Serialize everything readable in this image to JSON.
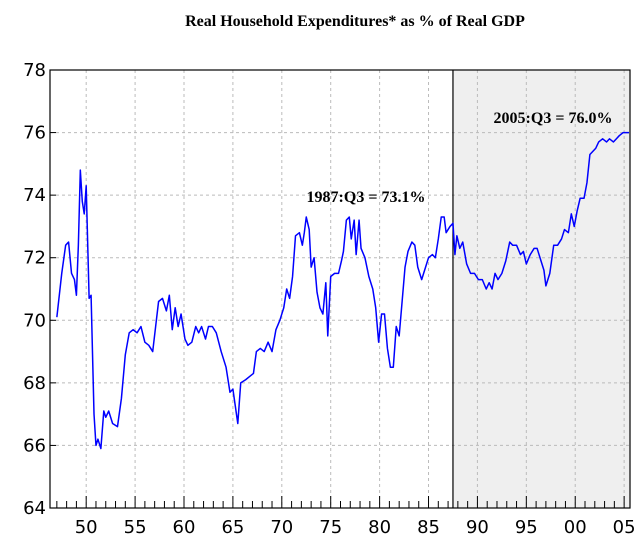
{
  "chart_data": {
    "type": "line",
    "title": "Real Household Expenditures* as % of Real GDP",
    "annotations": [
      "1987:Q3 = 73.1%",
      "2005:Q3 = 76.0%"
    ],
    "color": "#0000ff",
    "shade_from": 1987.5,
    "shade_color": "#efefef",
    "grid": true,
    "xlim": [
      1946.3,
      2005.6
    ],
    "ylim": [
      64,
      78
    ],
    "yticks": [
      64,
      66,
      68,
      70,
      72,
      74,
      76,
      78
    ],
    "xticks": [
      {
        "value": 1950,
        "label": "50"
      },
      {
        "value": 1955,
        "label": "55"
      },
      {
        "value": 1960,
        "label": "60"
      },
      {
        "value": 1965,
        "label": "65"
      },
      {
        "value": 1970,
        "label": "70"
      },
      {
        "value": 1975,
        "label": "75"
      },
      {
        "value": 1980,
        "label": "80"
      },
      {
        "value": 1985,
        "label": "85"
      },
      {
        "value": 1990,
        "label": "90"
      },
      {
        "value": 1995,
        "label": "95"
      },
      {
        "value": 2000,
        "label": "00"
      },
      {
        "value": 2005,
        "label": "05"
      }
    ],
    "xminorticks": [
      1947,
      1948,
      1949,
      1951,
      1952,
      1953,
      1954,
      1956,
      1957,
      1958,
      1959,
      1961,
      1962,
      1963,
      1964,
      1966,
      1967,
      1968,
      1969,
      1971,
      1972,
      1973,
      1974,
      1976,
      1977,
      1978,
      1979,
      1981,
      1982,
      1983,
      1984,
      1986,
      1987,
      1988,
      1989,
      1991,
      1992,
      1993,
      1994,
      1996,
      1997,
      1998,
      1999,
      2001,
      2002,
      2003,
      2004
    ],
    "x": [
      1947.0,
      1947.5,
      1947.9,
      1948.2,
      1948.5,
      1948.8,
      1949.0,
      1949.2,
      1949.4,
      1949.6,
      1949.8,
      1950.0,
      1950.3,
      1950.5,
      1950.8,
      1951.0,
      1951.2,
      1951.5,
      1951.8,
      1952.0,
      1952.3,
      1952.7,
      1953.2,
      1953.6,
      1954.0,
      1954.4,
      1954.8,
      1955.2,
      1955.6,
      1956.0,
      1956.4,
      1956.8,
      1957.1,
      1957.4,
      1957.8,
      1958.2,
      1958.5,
      1958.8,
      1959.1,
      1959.4,
      1959.7,
      1960.1,
      1960.4,
      1960.8,
      1961.2,
      1961.5,
      1961.8,
      1962.2,
      1962.5,
      1962.9,
      1963.3,
      1963.8,
      1964.3,
      1964.7,
      1965.0,
      1965.5,
      1965.8,
      1966.3,
      1966.7,
      1967.1,
      1967.4,
      1967.8,
      1968.2,
      1968.6,
      1969.0,
      1969.4,
      1969.8,
      1970.2,
      1970.5,
      1970.8,
      1971.1,
      1971.4,
      1971.8,
      1972.1,
      1972.3,
      1972.5,
      1972.8,
      1973.0,
      1973.3,
      1973.6,
      1973.9,
      1974.2,
      1974.5,
      1974.7,
      1975.0,
      1975.4,
      1975.8,
      1976.1,
      1976.3,
      1976.6,
      1976.9,
      1977.1,
      1977.4,
      1977.6,
      1977.9,
      1978.1,
      1978.5,
      1978.9,
      1979.3,
      1979.6,
      1979.9,
      1980.2,
      1980.5,
      1980.8,
      1981.1,
      1981.4,
      1981.7,
      1982.0,
      1982.3,
      1982.6,
      1982.9,
      1983.3,
      1983.6,
      1983.9,
      1984.3,
      1984.7,
      1985.0,
      1985.4,
      1985.7,
      1986.0,
      1986.3,
      1986.6,
      1986.8,
      1987.2,
      1987.5,
      1987.7,
      1987.9,
      1988.2,
      1988.5,
      1988.9,
      1989.3,
      1989.7,
      1990.1,
      1990.5,
      1990.9,
      1991.2,
      1991.5,
      1991.8,
      1992.1,
      1992.5,
      1992.9,
      1993.3,
      1993.6,
      1994.0,
      1994.4,
      1994.7,
      1995.0,
      1995.4,
      1995.8,
      1996.1,
      1996.5,
      1996.8,
      1997.0,
      1997.4,
      1997.8,
      1998.2,
      1998.6,
      1998.9,
      1999.3,
      1999.6,
      1999.9,
      2000.2,
      2000.5,
      2000.9,
      2001.2,
      2001.5,
      2001.8,
      2002.1,
      2002.4,
      2002.8,
      2003.2,
      2003.5,
      2003.9,
      2004.2,
      2004.5,
      2004.9,
      2005.2,
      2005.5
    ],
    "values": [
      70.1,
      71.5,
      72.4,
      72.5,
      71.5,
      71.3,
      70.8,
      72.4,
      74.8,
      73.8,
      73.4,
      74.3,
      70.7,
      70.8,
      67.0,
      66.0,
      66.2,
      65.9,
      67.1,
      66.9,
      67.1,
      66.7,
      66.6,
      67.5,
      68.9,
      69.6,
      69.7,
      69.6,
      69.8,
      69.3,
      69.2,
      69.0,
      69.8,
      70.6,
      70.7,
      70.3,
      70.8,
      69.7,
      70.4,
      69.8,
      70.2,
      69.4,
      69.2,
      69.3,
      69.8,
      69.6,
      69.8,
      69.4,
      69.8,
      69.8,
      69.6,
      69.0,
      68.5,
      67.7,
      67.8,
      66.7,
      68.0,
      68.1,
      68.2,
      68.3,
      69.0,
      69.1,
      69.0,
      69.3,
      69.0,
      69.7,
      70.0,
      70.4,
      71.0,
      70.7,
      71.4,
      72.7,
      72.8,
      72.4,
      72.8,
      73.3,
      72.9,
      71.7,
      72.0,
      70.9,
      70.4,
      70.2,
      71.2,
      69.5,
      71.4,
      71.5,
      71.5,
      71.9,
      72.2,
      73.2,
      73.3,
      72.6,
      73.2,
      72.1,
      73.2,
      72.3,
      72.0,
      71.4,
      71.0,
      70.4,
      69.3,
      70.2,
      70.2,
      69.1,
      68.5,
      68.5,
      69.8,
      69.5,
      70.6,
      71.7,
      72.2,
      72.5,
      72.4,
      71.7,
      71.3,
      71.7,
      72.0,
      72.1,
      72.0,
      72.6,
      73.3,
      73.3,
      72.8,
      73.0,
      73.1,
      72.1,
      72.7,
      72.3,
      72.5,
      71.8,
      71.5,
      71.5,
      71.3,
      71.3,
      71.0,
      71.2,
      71.0,
      71.5,
      71.3,
      71.5,
      71.9,
      72.5,
      72.4,
      72.4,
      72.1,
      72.2,
      71.8,
      72.1,
      72.3,
      72.3,
      71.9,
      71.6,
      71.1,
      71.5,
      72.4,
      72.4,
      72.6,
      72.9,
      72.8,
      73.4,
      73.0,
      73.5,
      73.9,
      73.9,
      74.4,
      75.3,
      75.4,
      75.5,
      75.7,
      75.8,
      75.7,
      75.8,
      75.7,
      75.8,
      75.9,
      76.0,
      76.0,
      76.0
    ]
  }
}
